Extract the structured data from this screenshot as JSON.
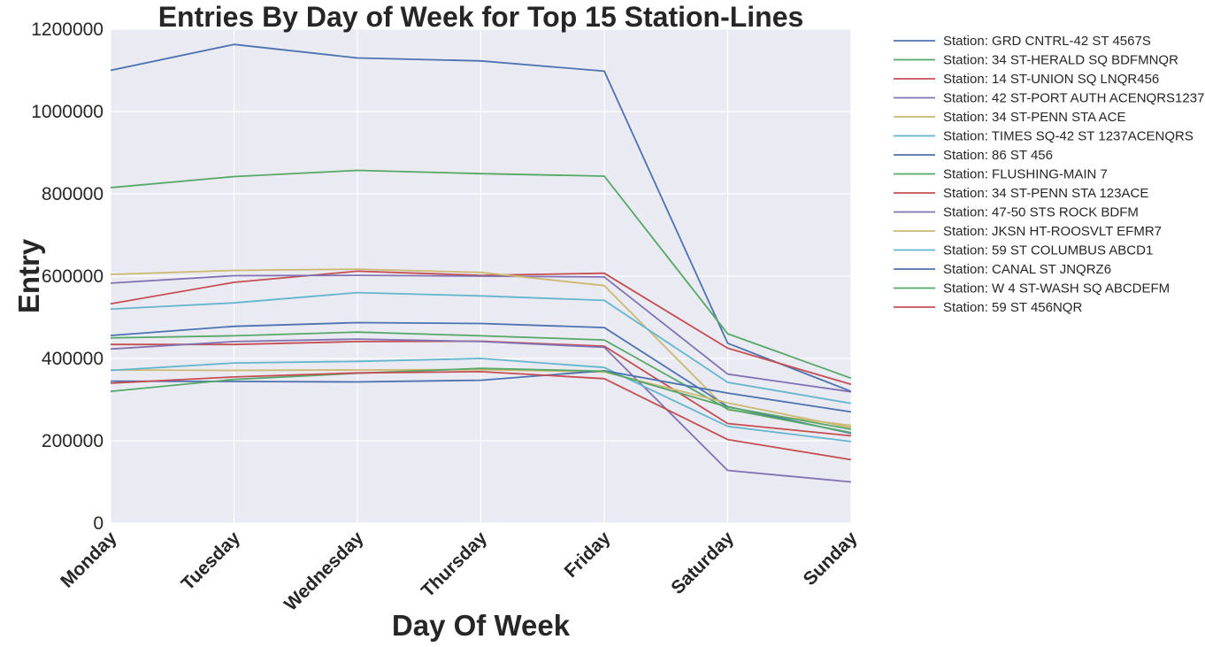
{
  "chart_data": {
    "type": "line",
    "title": "Entries By Day of Week for Top 15 Station-Lines",
    "xlabel": "Day Of Week",
    "ylabel": "Entry",
    "categories": [
      "Monday",
      "Tuesday",
      "Wednesday",
      "Thursday",
      "Friday",
      "Saturday",
      "Sunday"
    ],
    "ylim": [
      0,
      1200000
    ],
    "yticks": [
      0,
      200000,
      400000,
      600000,
      800000,
      1000000,
      1200000
    ],
    "ytick_labels": [
      "0",
      "200000",
      "400000",
      "600000",
      "800000",
      "1000000",
      "1200000"
    ],
    "grid": true,
    "legend_position": "outside-right",
    "series": [
      {
        "name": "Station: GRD CNTRL-42 ST 4567S",
        "color": "#4c72b0",
        "values": [
          1100000,
          1163000,
          1130000,
          1123000,
          1098000,
          437000,
          320000
        ]
      },
      {
        "name": "Station: 34 ST-HERALD SQ BDFMNQR",
        "color": "#55a868",
        "values": [
          815000,
          842000,
          857000,
          849000,
          843000,
          460000,
          352000
        ]
      },
      {
        "name": "Station: 14 ST-UNION SQ LNQR456",
        "color": "#c44e52",
        "values": [
          533000,
          585000,
          612000,
          602000,
          607000,
          425000,
          337000
        ]
      },
      {
        "name": "Station: 42 ST-PORT AUTH ACENQRS1237",
        "color": "#8172b2",
        "values": [
          583000,
          601000,
          602000,
          600000,
          598000,
          362000,
          319000
        ]
      },
      {
        "name": "Station: 34 ST-PENN STA ACE",
        "color": "#ccb974",
        "values": [
          604000,
          614000,
          617000,
          609000,
          577000,
          275000,
          237000
        ]
      },
      {
        "name": "Station: TIMES SQ-42 ST 1237ACENQRS",
        "color": "#64b5cd",
        "values": [
          520000,
          535000,
          560000,
          552000,
          541000,
          342000,
          291000
        ]
      },
      {
        "name": "Station: 86 ST 456",
        "color": "#4c72b0",
        "values": [
          456000,
          478000,
          487000,
          485000,
          475000,
          283000,
          218000
        ]
      },
      {
        "name": "Station: FLUSHING-MAIN 7",
        "color": "#55a868",
        "values": [
          450000,
          455000,
          464000,
          455000,
          445000,
          277000,
          220000
        ]
      },
      {
        "name": "Station: 34 ST-PENN STA 123ACE",
        "color": "#c44e52",
        "values": [
          434000,
          434000,
          441000,
          442000,
          430000,
          242000,
          212000
        ]
      },
      {
        "name": "Station: 47-50 STS ROCK BDFM",
        "color": "#8172b2",
        "values": [
          423000,
          441000,
          447000,
          441000,
          427000,
          128000,
          100000
        ]
      },
      {
        "name": "Station: JKSN HT-ROOSVLT EFMR7",
        "color": "#ccb974",
        "values": [
          372000,
          371000,
          372000,
          373000,
          367000,
          292000,
          232000
        ]
      },
      {
        "name": "Station: 59 ST COLUMBUS ABCD1",
        "color": "#64b5cd",
        "values": [
          371000,
          389000,
          393000,
          400000,
          378000,
          235000,
          198000
        ]
      },
      {
        "name": "Station: CANAL ST JNQRZ6",
        "color": "#4c72b0",
        "values": [
          345000,
          344000,
          343000,
          347000,
          370000,
          316000,
          270000
        ]
      },
      {
        "name": "Station: W 4 ST-WASH SQ ABCDEFM",
        "color": "#55a868",
        "values": [
          320000,
          349000,
          364000,
          376000,
          369000,
          282000,
          228000
        ]
      },
      {
        "name": "Station: 59 ST 456NQR",
        "color": "#c44e52",
        "values": [
          340000,
          355000,
          365000,
          368000,
          351000,
          203000,
          154000
        ]
      }
    ]
  }
}
